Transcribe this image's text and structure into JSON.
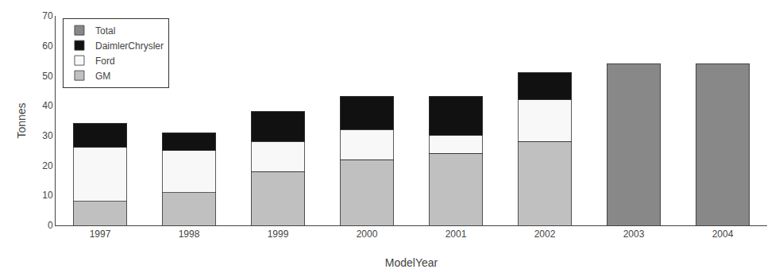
{
  "chart_data": {
    "type": "bar",
    "stacked": true,
    "categories": [
      "1997",
      "1998",
      "1999",
      "2000",
      "2001",
      "2002",
      "2003",
      "2004"
    ],
    "series": [
      {
        "name": "GM",
        "color": "#c0c0c0",
        "values": [
          8,
          11,
          18,
          22,
          24,
          28,
          0,
          0
        ]
      },
      {
        "name": "Ford",
        "color": "#f8f8f8",
        "values": [
          18,
          14,
          10,
          10,
          6,
          14,
          0,
          0
        ]
      },
      {
        "name": "DaimlerChrysler",
        "color": "#111111",
        "values": [
          8,
          6,
          10,
          11,
          13,
          9,
          0,
          0
        ]
      },
      {
        "name": "Total",
        "color": "#888888",
        "values": [
          0,
          0,
          0,
          0,
          0,
          0,
          54,
          54
        ]
      }
    ],
    "x_label": "ModelYear",
    "y_label": "Tonnes",
    "ylim": [
      0,
      70
    ],
    "yticks": [
      0,
      10,
      20,
      30,
      40,
      50,
      60,
      70
    ],
    "grid": false,
    "legend": "upper left"
  }
}
